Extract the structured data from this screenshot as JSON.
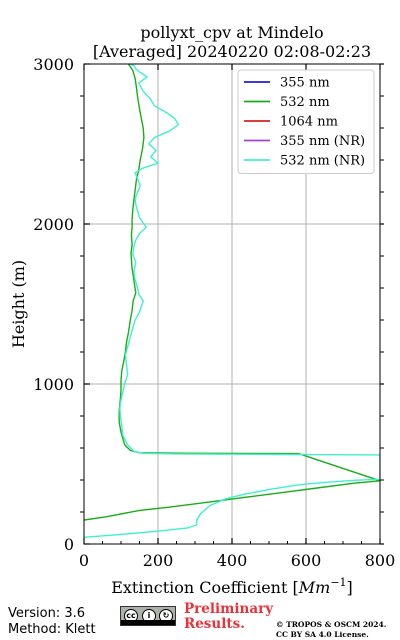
{
  "chart_data": {
    "type": "line",
    "title": [
      "pollyxt_cpv at Mindelo",
      "[Averaged] 20240220 02:08-02:23"
    ],
    "xlabel": "Extinction Coefficient [Mm⁻¹]",
    "ylabel": "Height (m)",
    "xlim": [
      0,
      800
    ],
    "ylim": [
      0,
      3000
    ],
    "xticks": [
      0,
      200,
      400,
      600,
      800
    ],
    "yticks": [
      0,
      1000,
      2000,
      3000
    ],
    "xtick_labels": [
      "0",
      "200",
      "400",
      "600",
      "800"
    ],
    "ytick_labels": [
      "0",
      "1000",
      "2000",
      "3000"
    ],
    "grid": true,
    "legend_position": "top-right",
    "series": [
      {
        "name": "355 nm",
        "color": "#1f1fd6",
        "points": []
      },
      {
        "name": "532 nm",
        "color": "#1aad1a",
        "points": [
          [
            0,
            150
          ],
          [
            60,
            170
          ],
          [
            150,
            210
          ],
          [
            230,
            230
          ],
          [
            330,
            260
          ],
          [
            430,
            290
          ],
          [
            530,
            320
          ],
          [
            630,
            350
          ],
          [
            730,
            380
          ],
          [
            800,
            395
          ],
          [
            580,
            565
          ],
          [
            300,
            567
          ],
          [
            150,
            570
          ],
          [
            125,
            585
          ],
          [
            110,
            620
          ],
          [
            105,
            660
          ],
          [
            100,
            700
          ],
          [
            95,
            760
          ],
          [
            95,
            830
          ],
          [
            98,
            900
          ],
          [
            100,
            960
          ],
          [
            100,
            1020
          ],
          [
            102,
            1080
          ],
          [
            108,
            1150
          ],
          [
            112,
            1200
          ],
          [
            115,
            1260
          ],
          [
            120,
            1320
          ],
          [
            125,
            1400
          ],
          [
            130,
            1460
          ],
          [
            133,
            1520
          ],
          [
            140,
            1570
          ],
          [
            136,
            1630
          ],
          [
            133,
            1680
          ],
          [
            130,
            1720
          ],
          [
            128,
            1780
          ],
          [
            127,
            1820
          ],
          [
            130,
            1870
          ],
          [
            128,
            1930
          ],
          [
            130,
            1980
          ],
          [
            130,
            2030
          ],
          [
            132,
            2090
          ],
          [
            135,
            2150
          ],
          [
            138,
            2210
          ],
          [
            142,
            2280
          ],
          [
            148,
            2340
          ],
          [
            152,
            2400
          ],
          [
            158,
            2470
          ],
          [
            162,
            2540
          ],
          [
            160,
            2600
          ],
          [
            155,
            2660
          ],
          [
            150,
            2720
          ],
          [
            145,
            2790
          ],
          [
            142,
            2850
          ],
          [
            138,
            2910
          ],
          [
            132,
            2960
          ],
          [
            120,
            3000
          ]
        ]
      },
      {
        "name": "1064 nm",
        "color": "#d62020",
        "points": []
      },
      {
        "name": "355 nm (NR)",
        "color": "#a040e0",
        "points": []
      },
      {
        "name": "532 nm (NR)",
        "color": "#40f0d0",
        "points": [
          [
            0,
            42
          ],
          [
            100,
            60
          ],
          [
            200,
            80
          ],
          [
            280,
            100
          ],
          [
            305,
            120
          ],
          [
            305,
            150
          ],
          [
            315,
            190
          ],
          [
            340,
            240
          ],
          [
            380,
            280
          ],
          [
            430,
            310
          ],
          [
            500,
            340
          ],
          [
            580,
            370
          ],
          [
            650,
            385
          ],
          [
            730,
            398
          ],
          [
            800,
            405
          ],
          [
            800,
            557
          ],
          [
            600,
            559
          ],
          [
            400,
            561
          ],
          [
            250,
            563
          ],
          [
            160,
            566
          ],
          [
            135,
            580
          ],
          [
            118,
            620
          ],
          [
            105,
            680
          ],
          [
            102,
            740
          ],
          [
            98,
            800
          ],
          [
            97,
            850
          ],
          [
            100,
            900
          ],
          [
            105,
            950
          ],
          [
            110,
            1000
          ],
          [
            118,
            1060
          ],
          [
            115,
            1120
          ],
          [
            112,
            1180
          ],
          [
            120,
            1250
          ],
          [
            128,
            1320
          ],
          [
            138,
            1400
          ],
          [
            150,
            1450
          ],
          [
            160,
            1520
          ],
          [
            148,
            1560
          ],
          [
            145,
            1600
          ],
          [
            138,
            1650
          ],
          [
            135,
            1700
          ],
          [
            140,
            1760
          ],
          [
            132,
            1810
          ],
          [
            135,
            1860
          ],
          [
            140,
            1900
          ],
          [
            150,
            1940
          ],
          [
            168,
            1980
          ],
          [
            150,
            2040
          ],
          [
            145,
            2080
          ],
          [
            140,
            2120
          ],
          [
            138,
            2160
          ],
          [
            145,
            2200
          ],
          [
            152,
            2240
          ],
          [
            145,
            2280
          ],
          [
            138,
            2320
          ],
          [
            160,
            2350
          ],
          [
            200,
            2380
          ],
          [
            180,
            2420
          ],
          [
            195,
            2460
          ],
          [
            175,
            2500
          ],
          [
            190,
            2540
          ],
          [
            230,
            2580
          ],
          [
            255,
            2620
          ],
          [
            245,
            2660
          ],
          [
            220,
            2700
          ],
          [
            190,
            2740
          ],
          [
            180,
            2780
          ],
          [
            160,
            2830
          ],
          [
            148,
            2880
          ],
          [
            170,
            2920
          ],
          [
            150,
            2950
          ],
          [
            140,
            2970
          ],
          [
            135,
            2990
          ],
          [
            125,
            3000
          ]
        ]
      }
    ]
  },
  "footer": {
    "version": "Version: 3.6",
    "method": "Method: Klett",
    "preliminary_line1": "Preliminary",
    "preliminary_line2": "Results.",
    "license_line1": "© TROPOS & OSCM 2024.",
    "license_line2": "CC BY SA 4.0 License.",
    "badge_cc": "cc",
    "badge_by": "BY",
    "badge_sa": "SA"
  }
}
